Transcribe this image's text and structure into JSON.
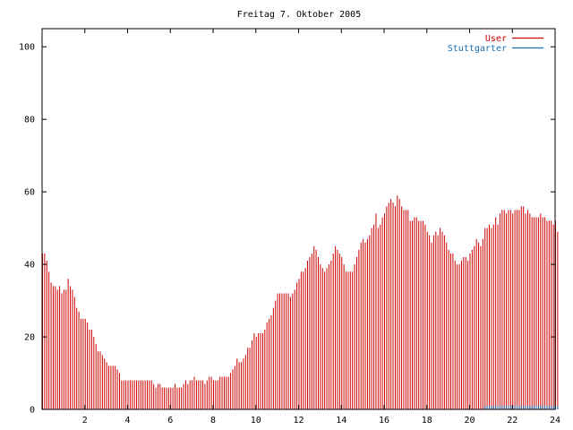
{
  "chart_data": {
    "type": "bar",
    "title": "Freitag 7. Oktober 2005",
    "xlabel": "",
    "ylabel": "",
    "xlim": [
      0,
      24
    ],
    "ylim": [
      0,
      105
    ],
    "xticks": [
      2,
      4,
      6,
      8,
      10,
      12,
      14,
      16,
      18,
      20,
      22,
      24
    ],
    "xtick_labels": [
      "2",
      "4",
      "6",
      "8",
      "10",
      "12",
      "14",
      "16",
      "18",
      "20",
      "22",
      "24"
    ],
    "yticks": [
      0,
      20,
      40,
      60,
      80,
      100
    ],
    "ytick_labels": [
      "0",
      "20",
      "40",
      "60",
      "80",
      "100"
    ],
    "grid": false,
    "legend_position": "top-right",
    "series": [
      {
        "name": "User",
        "color": "#cc0000",
        "style": "impulses",
        "x_step": 0.1,
        "values": [
          43,
          43,
          41,
          38,
          35,
          34,
          34,
          33,
          34,
          32,
          33,
          33,
          36,
          34,
          33,
          31,
          28,
          27,
          25,
          25,
          25,
          24,
          22,
          22,
          20,
          18,
          16,
          16,
          15,
          14,
          13,
          12,
          12,
          12,
          12,
          11,
          10,
          8,
          8,
          8,
          8,
          8,
          8,
          8,
          8,
          8,
          8,
          8,
          8,
          8,
          8,
          8,
          7,
          6,
          7,
          7,
          6,
          6,
          6,
          6,
          6,
          6,
          7,
          6,
          6,
          6,
          7,
          8,
          7,
          8,
          8,
          9,
          8,
          8,
          8,
          8,
          7,
          8,
          9,
          9,
          8,
          8,
          8,
          9,
          9,
          9,
          9,
          9,
          10,
          11,
          12,
          14,
          13,
          13,
          14,
          15,
          17,
          17,
          19,
          21,
          20,
          21,
          21,
          21,
          22,
          24,
          25,
          26,
          28,
          30,
          32,
          32,
          32,
          32,
          32,
          32,
          31,
          32,
          33,
          35,
          36,
          38,
          38,
          39,
          41,
          42,
          43,
          45,
          44,
          42,
          40,
          39,
          38,
          39,
          40,
          41,
          43,
          45,
          44,
          43,
          42,
          40,
          38,
          38,
          38,
          38,
          40,
          42,
          44,
          46,
          47,
          46,
          47,
          48,
          50,
          51,
          54,
          50,
          51,
          53,
          54,
          56,
          57,
          58,
          57,
          56,
          59,
          58,
          56,
          55,
          55,
          55,
          52,
          52,
          53,
          53,
          52,
          52,
          52,
          51,
          49,
          48,
          46,
          48,
          49,
          48,
          50,
          49,
          48,
          46,
          44,
          43,
          43,
          41,
          40,
          40,
          41,
          42,
          42,
          41,
          43,
          44,
          45,
          47,
          46,
          45,
          47,
          50,
          50,
          51,
          50,
          51,
          53,
          51,
          54,
          55,
          55,
          54,
          55,
          55,
          54,
          55,
          55,
          55,
          56,
          56,
          54,
          55,
          54,
          53,
          53,
          53,
          53,
          54,
          53,
          53,
          52,
          52,
          52,
          51,
          52,
          49
        ]
      },
      {
        "name": "Stuttgarter",
        "color": "#1a6fb5",
        "style": "impulses",
        "x_step": 0.1,
        "values": [
          0,
          0,
          0,
          0,
          0,
          0,
          0,
          0,
          0,
          0,
          0,
          0,
          0,
          0,
          0,
          0,
          0,
          0,
          0,
          0,
          0,
          0,
          0,
          0,
          0,
          0,
          0,
          0,
          0,
          0,
          0,
          0,
          0,
          0,
          0,
          0,
          0,
          0,
          0,
          0,
          0,
          0,
          0,
          0,
          0,
          0,
          0,
          0,
          0,
          0,
          0,
          0,
          0,
          0,
          0,
          0,
          0,
          0,
          0,
          0,
          0,
          0,
          0,
          0,
          0,
          0,
          0,
          0,
          0,
          0,
          0,
          0,
          0,
          0,
          0,
          0,
          0,
          0,
          0,
          0,
          0,
          0,
          0,
          0,
          0,
          0,
          0,
          0,
          0,
          0,
          0,
          0,
          0,
          0,
          0,
          0,
          0,
          0,
          0,
          0,
          0,
          0,
          0,
          0,
          0,
          0,
          0,
          0,
          0,
          0,
          0,
          0,
          0,
          0,
          0,
          0,
          0,
          0,
          0,
          0,
          0,
          0,
          0,
          0,
          0,
          0,
          0,
          0,
          0,
          0,
          0,
          0,
          0,
          0,
          0,
          0,
          0,
          0,
          0,
          0,
          0,
          0,
          0,
          0,
          0,
          0,
          0,
          0,
          0,
          0,
          0,
          0,
          0,
          0,
          0,
          0,
          0,
          0,
          0,
          0,
          0,
          0,
          0,
          0,
          0,
          0,
          0,
          0,
          0,
          0,
          0,
          0,
          0,
          0,
          0,
          0,
          0,
          0,
          0,
          0,
          0,
          0,
          0,
          0,
          0,
          0,
          0,
          0,
          0,
          0,
          0,
          0,
          0,
          0,
          0,
          0,
          0,
          0,
          0,
          0,
          0,
          0,
          0,
          0,
          0,
          0,
          0,
          1,
          1,
          1,
          1,
          1,
          1,
          1,
          1,
          1,
          1,
          1,
          1,
          1,
          1,
          1,
          1,
          1,
          1,
          1,
          1,
          1,
          1,
          1,
          1,
          1,
          1,
          1,
          1,
          1,
          1,
          1,
          1,
          1,
          1,
          1
        ]
      }
    ]
  }
}
